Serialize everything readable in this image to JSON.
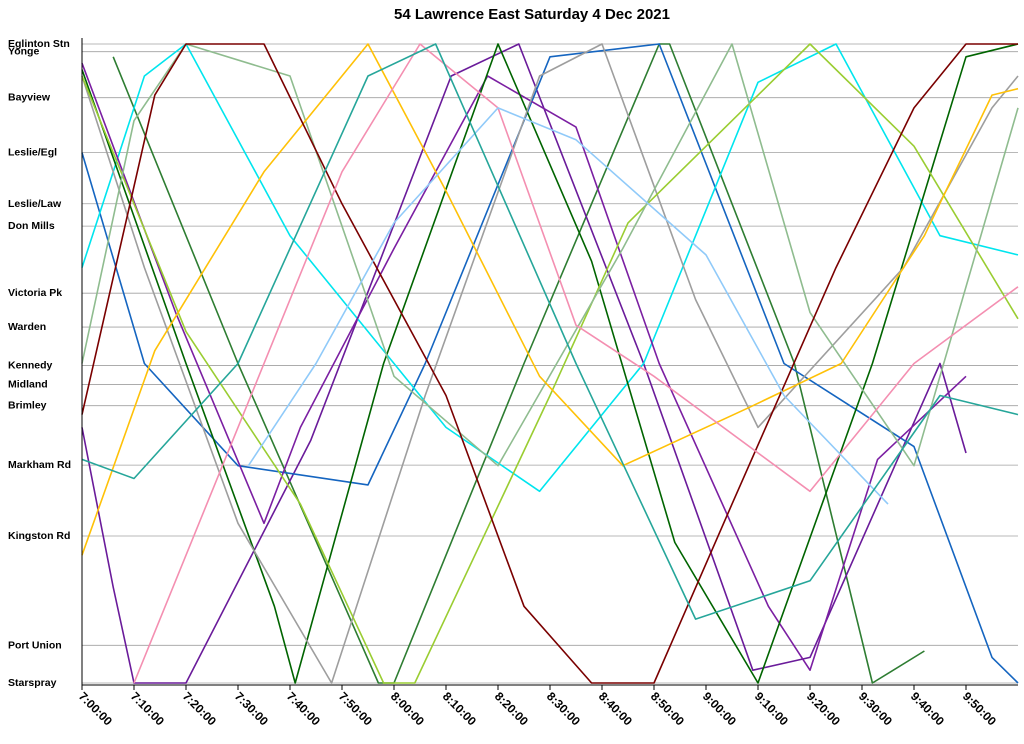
{
  "chart_data": {
    "type": "line",
    "title": "54 Lawrence East Saturday 4 Dec 2021",
    "xlabel": "",
    "ylabel": "",
    "grid": "horizontal",
    "legend": "none",
    "xlim": [
      "7:00:00",
      "10:00:00"
    ],
    "x_ticks": [
      "7:00:00",
      "7:10:00",
      "7:20:00",
      "7:30:00",
      "7:40:00",
      "7:50:00",
      "8:00:00",
      "8:10:00",
      "8:20:00",
      "8:30:00",
      "8:40:00",
      "8:50:00",
      "9:00:00",
      "9:10:00",
      "9:20:00",
      "9:30:00",
      "9:40:00",
      "9:50:00"
    ],
    "stops": [
      {
        "name": "Eglinton Stn",
        "pos": 0.0
      },
      {
        "name": "Yonge",
        "pos": 0.012
      },
      {
        "name": "Bayview",
        "pos": 0.084
      },
      {
        "name": "Leslie/Egl",
        "pos": 0.17
      },
      {
        "name": "Leslie/Law",
        "pos": 0.25
      },
      {
        "name": "Don Mills",
        "pos": 0.285
      },
      {
        "name": "Victoria Pk",
        "pos": 0.39
      },
      {
        "name": "Warden",
        "pos": 0.443
      },
      {
        "name": "Kennedy",
        "pos": 0.503
      },
      {
        "name": "Midland",
        "pos": 0.533
      },
      {
        "name": "Brimley",
        "pos": 0.566
      },
      {
        "name": "Markham Rd",
        "pos": 0.659
      },
      {
        "name": "Kingston Rd",
        "pos": 0.77
      },
      {
        "name": "Port Union",
        "pos": 0.941
      },
      {
        "name": "Starspray",
        "pos": 1.0
      }
    ],
    "series": [
      {
        "color": "#2e7d32",
        "points": [
          [
            "7:06:00",
            0.02
          ],
          [
            "7:30:00",
            0.5
          ],
          [
            "7:57:00",
            1.0
          ],
          [
            "8:00:00",
            1.0
          ],
          [
            "8:25:00",
            0.5
          ],
          [
            "8:51:00",
            0.0
          ],
          [
            "8:53:00",
            0.0
          ],
          [
            "9:17:00",
            0.5
          ],
          [
            "9:32:00",
            1.0
          ],
          [
            "9:42:00",
            0.95
          ]
        ]
      },
      {
        "color": "#6a1b9a",
        "points": [
          [
            "7:00:00",
            0.6
          ],
          [
            "7:06:00",
            0.85
          ],
          [
            "7:10:00",
            1.0
          ],
          [
            "7:20:00",
            1.0
          ],
          [
            "7:44:00",
            0.62
          ],
          [
            "8:11:00",
            0.05
          ],
          [
            "8:24:00",
            0.0
          ],
          [
            "8:48:00",
            0.5
          ],
          [
            "9:09:00",
            0.98
          ],
          [
            "9:20:00",
            0.96
          ],
          [
            "9:45:00",
            0.5
          ],
          [
            "9:50:00",
            0.64
          ]
        ]
      },
      {
        "color": "#1565c0",
        "points": [
          [
            "7:00:00",
            0.17
          ],
          [
            "7:12:00",
            0.5
          ],
          [
            "7:30:00",
            0.66
          ],
          [
            "7:55:00",
            0.69
          ],
          [
            "8:06:00",
            0.5
          ],
          [
            "8:30:00",
            0.02
          ],
          [
            "8:51:00",
            0.0
          ],
          [
            "9:15:00",
            0.5
          ],
          [
            "9:40:00",
            0.63
          ],
          [
            "9:55:00",
            0.96
          ],
          [
            "10:00:00",
            1.0
          ]
        ]
      },
      {
        "color": "#00e5ee",
        "points": [
          [
            "7:00:00",
            0.35
          ],
          [
            "7:12:00",
            0.05
          ],
          [
            "7:20:00",
            0.0
          ],
          [
            "7:40:00",
            0.3
          ],
          [
            "8:10:00",
            0.6
          ],
          [
            "8:28:00",
            0.7
          ],
          [
            "8:48:00",
            0.5
          ],
          [
            "9:10:00",
            0.06
          ],
          [
            "9:25:00",
            0.0
          ],
          [
            "9:45:00",
            0.3
          ],
          [
            "10:00:00",
            0.33
          ]
        ]
      },
      {
        "color": "#7b1fa2",
        "points": [
          [
            "7:00:00",
            0.03
          ],
          [
            "7:18:00",
            0.42
          ],
          [
            "7:35:00",
            0.75
          ],
          [
            "7:42:00",
            0.6
          ],
          [
            "8:00:00",
            0.32
          ],
          [
            "8:18:00",
            0.05
          ],
          [
            "8:35:00",
            0.13
          ],
          [
            "8:51:00",
            0.5
          ],
          [
            "9:12:00",
            0.88
          ],
          [
            "9:20:00",
            0.98
          ],
          [
            "9:33:00",
            0.65
          ],
          [
            "9:50:00",
            0.52
          ]
        ]
      },
      {
        "color": "#006400",
        "points": [
          [
            "7:00:00",
            0.04
          ],
          [
            "7:20:00",
            0.5
          ],
          [
            "7:37:00",
            0.88
          ],
          [
            "7:41:00",
            1.0
          ],
          [
            "7:58:00",
            0.5
          ],
          [
            "8:20:00",
            0.0
          ],
          [
            "8:38:00",
            0.34
          ],
          [
            "8:54:00",
            0.78
          ],
          [
            "9:10:00",
            1.0
          ],
          [
            "9:32:00",
            0.5
          ],
          [
            "9:50:00",
            0.02
          ],
          [
            "10:00:00",
            0.0
          ]
        ]
      },
      {
        "color": "#9e9e9e",
        "points": [
          [
            "7:00:00",
            0.05
          ],
          [
            "7:12:00",
            0.35
          ],
          [
            "7:30:00",
            0.75
          ],
          [
            "7:48:00",
            1.0
          ],
          [
            "8:06:00",
            0.55
          ],
          [
            "8:28:00",
            0.05
          ],
          [
            "8:40:00",
            0.0
          ],
          [
            "8:58:00",
            0.4
          ],
          [
            "9:10:00",
            0.6
          ],
          [
            "9:38:00",
            0.35
          ],
          [
            "9:55:00",
            0.1
          ],
          [
            "10:00:00",
            0.05
          ]
        ]
      },
      {
        "color": "#9acd32",
        "points": [
          [
            "7:00:00",
            0.05
          ],
          [
            "7:20:00",
            0.45
          ],
          [
            "7:42:00",
            0.72
          ],
          [
            "7:58:00",
            1.0
          ],
          [
            "8:04:00",
            1.0
          ],
          [
            "8:30:00",
            0.55
          ],
          [
            "8:45:00",
            0.28
          ],
          [
            "9:05:00",
            0.12
          ],
          [
            "9:20:00",
            0.0
          ],
          [
            "9:40:00",
            0.16
          ],
          [
            "10:00:00",
            0.43
          ]
        ]
      },
      {
        "color": "#8fbc8f",
        "points": [
          [
            "7:00:00",
            0.5
          ],
          [
            "7:10:00",
            0.12
          ],
          [
            "7:20:00",
            0.0
          ],
          [
            "7:40:00",
            0.05
          ],
          [
            "8:00:00",
            0.52
          ],
          [
            "8:20:00",
            0.66
          ],
          [
            "8:44:00",
            0.32
          ],
          [
            "9:05:00",
            0.0
          ],
          [
            "9:20:00",
            0.42
          ],
          [
            "9:40:00",
            0.66
          ],
          [
            "10:00:00",
            0.1
          ]
        ]
      },
      {
        "color": "#ffc107",
        "points": [
          [
            "7:00:00",
            0.8
          ],
          [
            "7:14:00",
            0.48
          ],
          [
            "7:35:00",
            0.2
          ],
          [
            "7:55:00",
            0.0
          ],
          [
            "8:10:00",
            0.23
          ],
          [
            "8:28:00",
            0.52
          ],
          [
            "8:44:00",
            0.66
          ],
          [
            "9:08:00",
            0.57
          ],
          [
            "9:26:00",
            0.5
          ],
          [
            "9:42:00",
            0.3
          ],
          [
            "9:55:00",
            0.08
          ],
          [
            "10:00:00",
            0.07
          ]
        ]
      },
      {
        "color": "#7a0000",
        "points": [
          [
            "7:00:00",
            0.58
          ],
          [
            "7:14:00",
            0.08
          ],
          [
            "7:20:00",
            0.0
          ],
          [
            "7:35:00",
            0.0
          ],
          [
            "7:50:00",
            0.25
          ],
          [
            "8:10:00",
            0.55
          ],
          [
            "8:25:00",
            0.88
          ],
          [
            "8:38:00",
            1.0
          ],
          [
            "8:50:00",
            1.0
          ],
          [
            "9:05:00",
            0.72
          ],
          [
            "9:25:00",
            0.35
          ],
          [
            "9:40:00",
            0.1
          ],
          [
            "9:50:00",
            0.0
          ],
          [
            "10:00:00",
            0.0
          ]
        ]
      },
      {
        "color": "#f48fb1",
        "points": [
          [
            "7:10:00",
            1.0
          ],
          [
            "7:30:00",
            0.6
          ],
          [
            "7:50:00",
            0.2
          ],
          [
            "8:05:00",
            0.0
          ],
          [
            "8:20:00",
            0.1
          ],
          [
            "8:35:00",
            0.44
          ],
          [
            "8:50:00",
            0.52
          ],
          [
            "9:20:00",
            0.7
          ],
          [
            "9:40:00",
            0.5
          ],
          [
            "10:00:00",
            0.38
          ]
        ]
      },
      {
        "color": "#90caf9",
        "points": [
          [
            "7:32:00",
            0.66
          ],
          [
            "7:45:00",
            0.5
          ],
          [
            "8:00:00",
            0.28
          ],
          [
            "8:20:00",
            0.1
          ],
          [
            "8:35:00",
            0.15
          ],
          [
            "9:00:00",
            0.33
          ],
          [
            "9:15:00",
            0.55
          ],
          [
            "9:35:00",
            0.72
          ]
        ]
      },
      {
        "color": "#26a69a",
        "points": [
          [
            "7:00:00",
            0.65
          ],
          [
            "7:10:00",
            0.68
          ],
          [
            "7:30:00",
            0.5
          ],
          [
            "7:55:00",
            0.05
          ],
          [
            "8:08:00",
            0.0
          ],
          [
            "8:35:00",
            0.5
          ],
          [
            "8:58:00",
            0.9
          ],
          [
            "9:20:00",
            0.84
          ],
          [
            "9:45:00",
            0.55
          ],
          [
            "10:00:00",
            0.58
          ]
        ]
      }
    ]
  }
}
